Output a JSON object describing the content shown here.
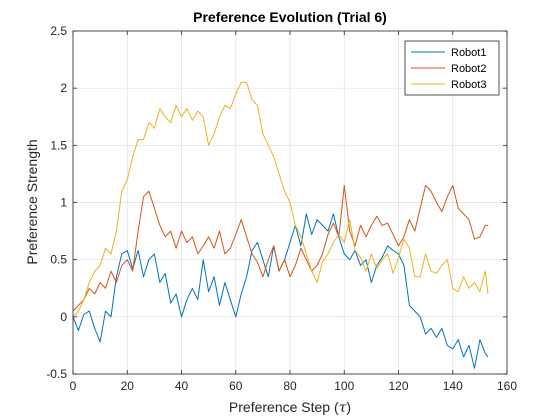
{
  "chart_data": {
    "type": "line",
    "title": "Preference Evolution (Trial 6)",
    "xlabel_text": "Preference Step (",
    "xlabel_symbol": "τ",
    "xlabel_close": ")",
    "ylabel": "Preference Strength",
    "xlim": [
      0,
      160
    ],
    "ylim": [
      -0.5,
      2.5
    ],
    "xticks": [
      0,
      20,
      40,
      60,
      80,
      100,
      120,
      140,
      160
    ],
    "yticks": [
      -0.5,
      0,
      0.5,
      1,
      1.5,
      2,
      2.5
    ],
    "xtick_labels": [
      "0",
      "20",
      "40",
      "60",
      "80",
      "100",
      "120",
      "140",
      "160"
    ],
    "ytick_labels": [
      "-0.5",
      "0",
      "0.5",
      "1",
      "1.5",
      "2",
      "2.5"
    ],
    "grid": true,
    "legend_position": "top-right",
    "series": [
      {
        "name": "Robot1",
        "color": "#0072BD",
        "x": [
          0,
          2,
          4,
          6,
          8,
          10,
          12,
          14,
          16,
          18,
          20,
          22,
          24,
          26,
          28,
          30,
          32,
          34,
          36,
          38,
          40,
          42,
          44,
          46,
          48,
          50,
          52,
          54,
          56,
          58,
          60,
          62,
          64,
          66,
          68,
          70,
          72,
          74,
          76,
          78,
          80,
          82,
          84,
          86,
          88,
          90,
          92,
          94,
          96,
          98,
          100,
          102,
          104,
          106,
          108,
          110,
          112,
          114,
          116,
          118,
          120,
          122,
          124,
          126,
          128,
          130,
          132,
          134,
          136,
          138,
          140,
          142,
          144,
          146,
          148,
          150,
          152,
          153
        ],
        "y": [
          0.0,
          -0.12,
          0.02,
          0.05,
          -0.1,
          -0.22,
          0.05,
          0.0,
          0.35,
          0.55,
          0.58,
          0.42,
          0.58,
          0.35,
          0.5,
          0.55,
          0.3,
          0.38,
          0.12,
          0.2,
          0.0,
          0.15,
          0.25,
          0.15,
          0.5,
          0.22,
          0.35,
          0.1,
          0.3,
          0.15,
          0.0,
          0.2,
          0.35,
          0.58,
          0.65,
          0.5,
          0.35,
          0.62,
          0.4,
          0.5,
          0.65,
          0.8,
          0.62,
          0.9,
          0.72,
          0.85,
          0.8,
          0.75,
          0.9,
          0.7,
          0.55,
          0.5,
          0.58,
          0.45,
          0.5,
          0.3,
          0.45,
          0.52,
          0.62,
          0.58,
          0.55,
          0.45,
          0.1,
          0.05,
          0.0,
          -0.15,
          -0.1,
          -0.18,
          -0.1,
          -0.25,
          -0.28,
          -0.2,
          -0.35,
          -0.25,
          -0.45,
          -0.2,
          -0.32,
          -0.35
        ]
      },
      {
        "name": "Robot2",
        "color": "#D95319",
        "x": [
          0,
          2,
          4,
          6,
          8,
          10,
          12,
          14,
          16,
          18,
          20,
          22,
          24,
          26,
          28,
          30,
          32,
          34,
          36,
          38,
          40,
          42,
          44,
          46,
          48,
          50,
          52,
          54,
          56,
          58,
          60,
          62,
          64,
          66,
          68,
          70,
          72,
          74,
          76,
          78,
          80,
          82,
          84,
          86,
          88,
          90,
          92,
          94,
          96,
          98,
          100,
          102,
          104,
          106,
          108,
          110,
          112,
          114,
          116,
          118,
          120,
          122,
          124,
          126,
          128,
          130,
          132,
          134,
          136,
          138,
          140,
          142,
          144,
          146,
          148,
          150,
          152,
          153
        ],
        "y": [
          0.05,
          0.1,
          0.15,
          0.25,
          0.2,
          0.3,
          0.25,
          0.4,
          0.3,
          0.45,
          0.5,
          0.4,
          0.75,
          1.05,
          1.1,
          0.95,
          0.8,
          0.7,
          0.75,
          0.6,
          0.75,
          0.65,
          0.7,
          0.55,
          0.62,
          0.7,
          0.6,
          0.75,
          0.55,
          0.6,
          0.72,
          0.85,
          0.7,
          0.55,
          0.48,
          0.35,
          0.5,
          0.62,
          0.4,
          0.5,
          0.35,
          0.45,
          0.6,
          0.5,
          0.4,
          0.45,
          0.55,
          0.72,
          0.82,
          0.7,
          1.15,
          0.75,
          0.62,
          0.8,
          0.7,
          0.8,
          0.88,
          0.8,
          0.82,
          0.72,
          0.62,
          0.7,
          0.85,
          0.75,
          0.95,
          1.15,
          1.1,
          1.0,
          0.92,
          1.05,
          1.15,
          0.95,
          0.9,
          0.85,
          0.68,
          0.7,
          0.8,
          0.8
        ]
      },
      {
        "name": "Robot3",
        "color": "#EDB120",
        "x": [
          0,
          2,
          4,
          6,
          8,
          10,
          12,
          14,
          16,
          18,
          20,
          22,
          24,
          26,
          28,
          30,
          32,
          34,
          36,
          38,
          40,
          42,
          44,
          46,
          48,
          50,
          52,
          54,
          56,
          58,
          60,
          62,
          64,
          66,
          68,
          70,
          72,
          74,
          76,
          78,
          80,
          82,
          84,
          86,
          88,
          90,
          92,
          94,
          96,
          98,
          100,
          102,
          104,
          106,
          108,
          110,
          112,
          114,
          116,
          118,
          120,
          122,
          124,
          126,
          128,
          130,
          132,
          134,
          136,
          138,
          140,
          142,
          144,
          146,
          148,
          150,
          152,
          153
        ],
        "y": [
          0.0,
          0.05,
          0.15,
          0.3,
          0.4,
          0.45,
          0.6,
          0.55,
          0.75,
          1.1,
          1.2,
          1.4,
          1.55,
          1.55,
          1.7,
          1.65,
          1.82,
          1.75,
          1.7,
          1.85,
          1.75,
          1.82,
          1.72,
          1.8,
          1.75,
          1.5,
          1.6,
          1.75,
          1.85,
          1.82,
          1.95,
          2.05,
          2.05,
          1.9,
          1.85,
          1.6,
          1.5,
          1.4,
          1.25,
          1.1,
          1.0,
          0.8,
          0.7,
          0.55,
          0.4,
          0.3,
          0.48,
          0.55,
          0.65,
          0.72,
          0.65,
          0.85,
          0.58,
          0.52,
          0.4,
          0.55,
          0.42,
          0.5,
          0.55,
          0.38,
          0.52,
          0.68,
          0.6,
          0.35,
          0.35,
          0.55,
          0.4,
          0.38,
          0.45,
          0.5,
          0.25,
          0.22,
          0.35,
          0.25,
          0.3,
          0.22,
          0.4,
          0.2
        ]
      }
    ]
  }
}
